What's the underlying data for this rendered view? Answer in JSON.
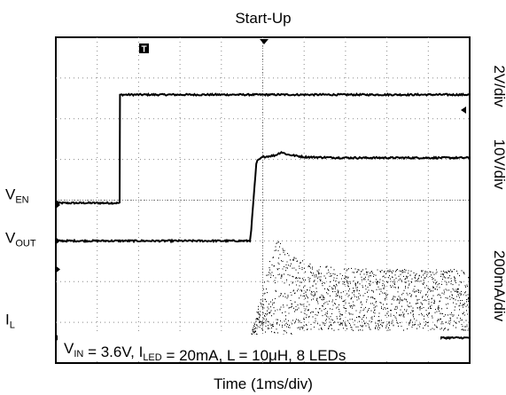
{
  "chart_data": {
    "type": "line",
    "title": "Start-Up",
    "xlabel": "Time (1ms/div)",
    "time_per_div_ms": 1,
    "divisions": {
      "x": 10,
      "y": 8
    },
    "scales": [
      "2V/div",
      "10V/div",
      "200mA/div"
    ],
    "annotation": {
      "parts": [
        {
          "text": "V",
          "sub": "IN"
        },
        {
          "text": " = 3.6V, I",
          "sub": ""
        },
        {
          "text": "",
          "sub": "LED"
        },
        {
          "text": " = 20mA, L = 10μH, 8 LEDs",
          "sub": ""
        }
      ]
    },
    "trigger_marker": "T",
    "series": [
      {
        "name": "V_EN",
        "label": "V",
        "label_sub": "EN",
        "noise": 0.02,
        "points": [
          [
            0,
            3.93
          ],
          [
            1.55,
            3.93
          ],
          [
            1.55,
            6.59
          ],
          [
            10,
            6.59
          ]
        ]
      },
      {
        "name": "V_OUT",
        "label": "V",
        "label_sub": "OUT",
        "noise": 0.02,
        "points": [
          [
            0,
            3.0
          ],
          [
            4.7,
            3.0
          ],
          [
            4.78,
            4.05
          ],
          [
            4.85,
            4.95
          ],
          [
            5.0,
            5.06
          ],
          [
            5.3,
            5.1
          ],
          [
            5.45,
            5.18
          ],
          [
            5.6,
            5.12
          ],
          [
            6.0,
            5.06
          ],
          [
            7.0,
            5.04
          ],
          [
            10,
            5.04
          ]
        ]
      },
      {
        "name": "I_L",
        "label": "I",
        "label_sub": "L",
        "noise": 0.02,
        "points": [
          [
            0,
            0.62
          ],
          [
            4.7,
            0.62
          ],
          [
            10,
            0.62
          ]
        ],
        "burst": {
          "start": 4.7,
          "end": 10,
          "low": 0.65,
          "high_settled": 2.3,
          "high_peak": 3.1,
          "peak_at": 5.3
        }
      }
    ],
    "ground_markers": [
      3.88,
      2.3
    ]
  }
}
